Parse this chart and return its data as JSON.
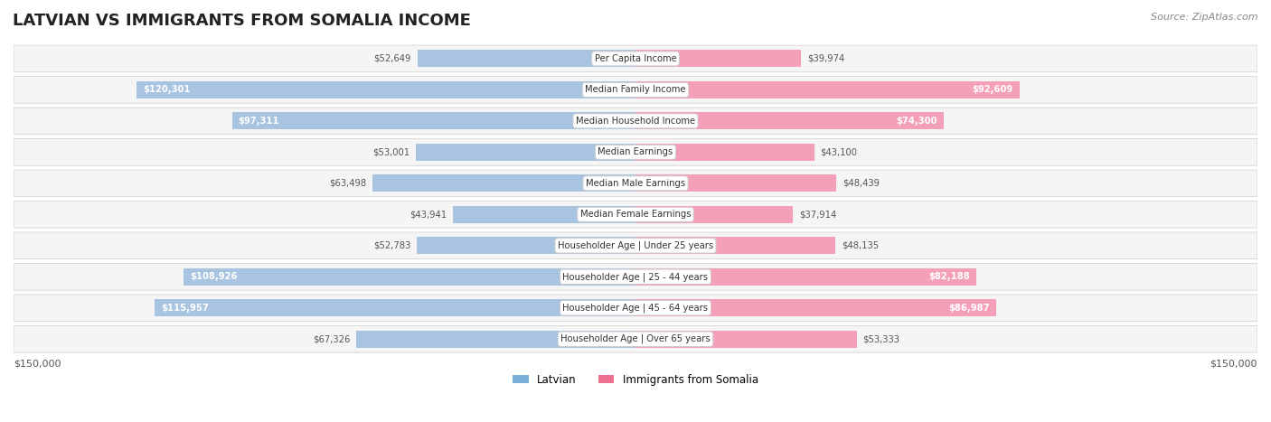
{
  "title": "LATVIAN VS IMMIGRANTS FROM SOMALIA INCOME",
  "source": "Source: ZipAtlas.com",
  "categories": [
    "Per Capita Income",
    "Median Family Income",
    "Median Household Income",
    "Median Earnings",
    "Median Male Earnings",
    "Median Female Earnings",
    "Householder Age | Under 25 years",
    "Householder Age | 25 - 44 years",
    "Householder Age | 45 - 64 years",
    "Householder Age | Over 65 years"
  ],
  "latvian_values": [
    52649,
    120301,
    97311,
    53001,
    63498,
    43941,
    52783,
    108926,
    115957,
    67326
  ],
  "somalia_values": [
    39974,
    92609,
    74300,
    43100,
    48439,
    37914,
    48135,
    82188,
    86987,
    53333
  ],
  "latvian_labels": [
    "$52,649",
    "$120,301",
    "$97,311",
    "$53,001",
    "$63,498",
    "$43,941",
    "$52,783",
    "$108,926",
    "$115,957",
    "$67,326"
  ],
  "somalia_labels": [
    "$39,974",
    "$92,609",
    "$74,300",
    "$43,100",
    "$48,439",
    "$37,914",
    "$48,135",
    "$82,188",
    "$86,987",
    "$53,333"
  ],
  "latvian_color_bar": "#a8c4e0",
  "somalia_color_bar": "#f4a0b8",
  "latvian_color_dark": "#6699cc",
  "somalia_color_dark": "#f06090",
  "latvian_legend_color": "#7ab0d8",
  "somalia_legend_color": "#f07090",
  "max_value": 150000,
  "x_label_left": "$150,000",
  "x_label_right": "$150,000",
  "legend_latvian": "Latvian",
  "legend_somalia": "Immigrants from Somalia",
  "background_color": "#ffffff",
  "row_bg_color": "#f0f0f0",
  "title_fontsize": 13,
  "label_fontsize": 8.5
}
